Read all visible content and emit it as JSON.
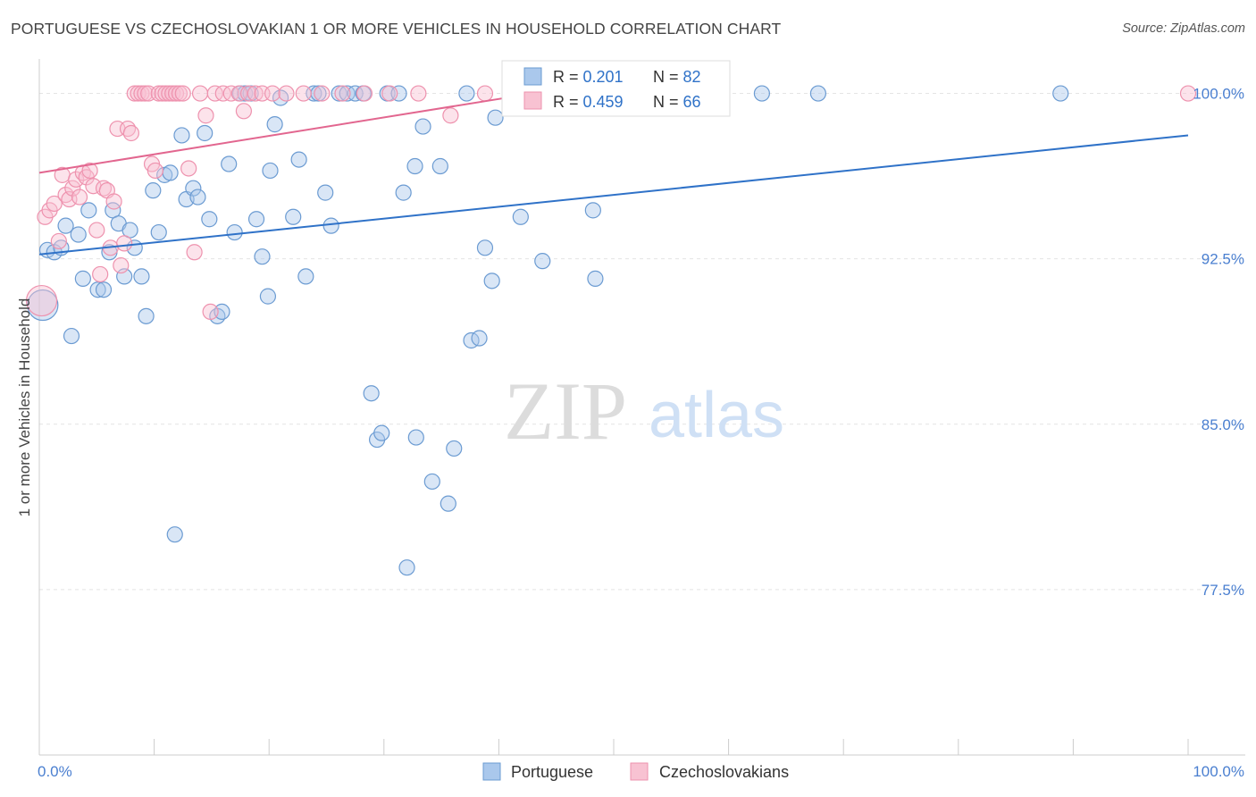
{
  "chart_data": {
    "type": "scatter",
    "title": "PORTUGUESE VS CZECHOSLOVAKIAN 1 OR MORE VEHICLES IN HOUSEHOLD CORRELATION CHART",
    "source": "Source: ZipAtlas.com",
    "xlabel": "",
    "ylabel": "1 or more Vehicles in Household",
    "xlim": [
      0,
      100
    ],
    "ylim": [
      70.0,
      101.4
    ],
    "x_tick_labels": [
      {
        "value": 0,
        "label": "0.0%"
      },
      {
        "value": 100,
        "label": "100.0%"
      }
    ],
    "y_ticks": [
      {
        "value": 100.0,
        "label": "100.0%"
      },
      {
        "value": 92.5,
        "label": "92.5%"
      },
      {
        "value": 85.0,
        "label": "85.0%"
      },
      {
        "value": 77.5,
        "label": "77.5%"
      }
    ],
    "grid": true,
    "watermark": {
      "part1": "ZIP",
      "part2": "atlas"
    },
    "legend_stats": [
      {
        "r_label": "R = ",
        "r_value": "0.201",
        "n_label": "N = ",
        "n_value": "82"
      },
      {
        "r_label": "R = ",
        "r_value": "0.459",
        "n_label": "N = ",
        "n_value": "66"
      }
    ],
    "series": [
      {
        "name": "Portuguese",
        "color": "#6b9bd2",
        "fill": "#aac8ec",
        "line_color": "#2f72c8",
        "trend": {
          "x0": 0,
          "y0": 92.7,
          "x1": 100,
          "y1": 98.1
        },
        "points": [
          [
            0.3,
            90.4
          ],
          [
            0.7,
            92.9
          ],
          [
            1.3,
            92.8
          ],
          [
            1.9,
            93.0
          ],
          [
            2.3,
            94.0
          ],
          [
            2.8,
            89.0
          ],
          [
            3.4,
            93.6
          ],
          [
            3.8,
            91.6
          ],
          [
            4.3,
            94.7
          ],
          [
            5.1,
            91.1
          ],
          [
            5.6,
            91.1
          ],
          [
            6.1,
            92.8
          ],
          [
            6.4,
            94.7
          ],
          [
            6.9,
            94.1
          ],
          [
            7.4,
            91.7
          ],
          [
            7.9,
            93.8
          ],
          [
            8.3,
            93.0
          ],
          [
            8.9,
            91.7
          ],
          [
            9.3,
            89.9
          ],
          [
            9.9,
            95.6
          ],
          [
            10.4,
            93.7
          ],
          [
            10.9,
            96.3
          ],
          [
            11.4,
            96.4
          ],
          [
            11.8,
            80.0
          ],
          [
            12.4,
            98.1
          ],
          [
            12.8,
            95.2
          ],
          [
            13.4,
            95.7
          ],
          [
            13.8,
            95.3
          ],
          [
            14.4,
            98.2
          ],
          [
            14.8,
            94.3
          ],
          [
            15.5,
            89.9
          ],
          [
            15.9,
            90.1
          ],
          [
            16.5,
            96.8
          ],
          [
            17.0,
            93.7
          ],
          [
            17.5,
            100.0
          ],
          [
            17.9,
            100.0
          ],
          [
            18.4,
            100.0
          ],
          [
            18.9,
            94.3
          ],
          [
            19.4,
            92.6
          ],
          [
            19.9,
            90.8
          ],
          [
            20.1,
            96.5
          ],
          [
            20.5,
            98.6
          ],
          [
            21.0,
            99.8
          ],
          [
            22.1,
            94.4
          ],
          [
            22.6,
            97.0
          ],
          [
            23.2,
            91.7
          ],
          [
            23.9,
            100.0
          ],
          [
            24.3,
            100.0
          ],
          [
            24.9,
            95.5
          ],
          [
            25.4,
            94.0
          ],
          [
            26.1,
            100.0
          ],
          [
            26.8,
            100.0
          ],
          [
            27.5,
            100.0
          ],
          [
            28.2,
            100.0
          ],
          [
            28.9,
            86.4
          ],
          [
            29.4,
            84.3
          ],
          [
            29.8,
            84.6
          ],
          [
            30.3,
            100.0
          ],
          [
            31.3,
            100.0
          ],
          [
            31.7,
            95.5
          ],
          [
            32.0,
            78.5
          ],
          [
            32.7,
            96.7
          ],
          [
            32.8,
            84.4
          ],
          [
            33.4,
            98.5
          ],
          [
            34.2,
            82.4
          ],
          [
            34.9,
            96.7
          ],
          [
            35.6,
            81.4
          ],
          [
            36.1,
            83.9
          ],
          [
            37.2,
            100.0
          ],
          [
            37.6,
            88.8
          ],
          [
            38.3,
            88.9
          ],
          [
            38.8,
            93.0
          ],
          [
            39.4,
            91.5
          ],
          [
            39.7,
            98.9
          ],
          [
            41.9,
            94.4
          ],
          [
            43.8,
            92.4
          ],
          [
            45.1,
            100.0
          ],
          [
            48.4,
            91.6
          ],
          [
            48.2,
            94.7
          ],
          [
            62.9,
            100.0
          ],
          [
            67.8,
            100.0
          ],
          [
            88.9,
            100.0
          ]
        ]
      },
      {
        "name": "Czechoslovakians",
        "color": "#ee92ae",
        "fill": "#f8c2d2",
        "line_color": "#e2668f",
        "trend": {
          "x0": 0,
          "y0": 96.4,
          "x1": 43,
          "y1": 100.0
        },
        "points": [
          [
            0.2,
            90.6
          ],
          [
            0.5,
            94.4
          ],
          [
            0.9,
            94.7
          ],
          [
            1.3,
            95.0
          ],
          [
            1.7,
            93.3
          ],
          [
            2.0,
            96.3
          ],
          [
            2.3,
            95.4
          ],
          [
            2.6,
            95.2
          ],
          [
            2.9,
            95.7
          ],
          [
            3.2,
            96.1
          ],
          [
            3.5,
            95.3
          ],
          [
            3.8,
            96.4
          ],
          [
            4.1,
            96.2
          ],
          [
            4.4,
            96.5
          ],
          [
            4.7,
            95.8
          ],
          [
            5.0,
            93.8
          ],
          [
            5.3,
            91.8
          ],
          [
            5.6,
            95.7
          ],
          [
            5.9,
            95.6
          ],
          [
            6.2,
            93.0
          ],
          [
            6.5,
            95.1
          ],
          [
            6.8,
            98.4
          ],
          [
            7.1,
            92.2
          ],
          [
            7.4,
            93.2
          ],
          [
            7.7,
            98.4
          ],
          [
            8.0,
            98.2
          ],
          [
            8.3,
            100.0
          ],
          [
            8.6,
            100.0
          ],
          [
            8.9,
            100.0
          ],
          [
            9.2,
            100.0
          ],
          [
            9.5,
            100.0
          ],
          [
            9.8,
            96.8
          ],
          [
            10.1,
            96.5
          ],
          [
            10.4,
            100.0
          ],
          [
            10.7,
            100.0
          ],
          [
            11.0,
            100.0
          ],
          [
            11.3,
            100.0
          ],
          [
            11.6,
            100.0
          ],
          [
            11.9,
            100.0
          ],
          [
            12.2,
            100.0
          ],
          [
            12.5,
            100.0
          ],
          [
            13.0,
            96.6
          ],
          [
            13.5,
            92.8
          ],
          [
            14.0,
            100.0
          ],
          [
            14.5,
            99.0
          ],
          [
            14.9,
            90.1
          ],
          [
            15.3,
            100.0
          ],
          [
            16.0,
            100.0
          ],
          [
            16.7,
            100.0
          ],
          [
            17.4,
            100.0
          ],
          [
            17.8,
            99.2
          ],
          [
            18.2,
            100.0
          ],
          [
            18.8,
            100.0
          ],
          [
            19.4,
            100.0
          ],
          [
            20.3,
            100.0
          ],
          [
            21.5,
            100.0
          ],
          [
            23.0,
            100.0
          ],
          [
            24.6,
            100.0
          ],
          [
            26.4,
            100.0
          ],
          [
            28.3,
            100.0
          ],
          [
            30.5,
            100.0
          ],
          [
            33.0,
            100.0
          ],
          [
            35.8,
            99.0
          ],
          [
            38.8,
            100.0
          ],
          [
            42.2,
            100.0
          ],
          [
            100.0,
            100.0
          ]
        ]
      }
    ]
  }
}
